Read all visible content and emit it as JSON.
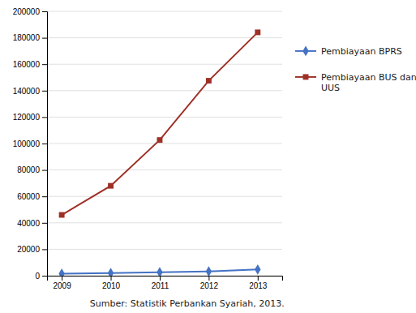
{
  "chart_data": {
    "type": "line",
    "x": [
      2009,
      2010,
      2011,
      2012,
      2013
    ],
    "series": [
      {
        "name": "Pembiayaan BPRS",
        "color": "#4472C4",
        "marker": "diamond",
        "values": [
          1500,
          2060,
          2670,
          3211,
          4694
        ]
      },
      {
        "name": "Pembiayaan BUS dan\nUUS",
        "color": "#9E3026",
        "marker": "square",
        "values": [
          46000,
          68000,
          102655,
          147505,
          184122
        ]
      }
    ],
    "xlim": [
      2008.7,
      2013.5
    ],
    "xticks": [
      2009,
      2010,
      2011,
      2012,
      2013
    ],
    "ylim": [
      0,
      200000
    ],
    "yticks": [
      0,
      20000,
      40000,
      60000,
      80000,
      100000,
      120000,
      140000,
      160000,
      180000,
      200000
    ],
    "grid": true,
    "legend": "right",
    "annotations": [
      "Sumber: Statistik Perbankan Syariah, 2013."
    ]
  }
}
